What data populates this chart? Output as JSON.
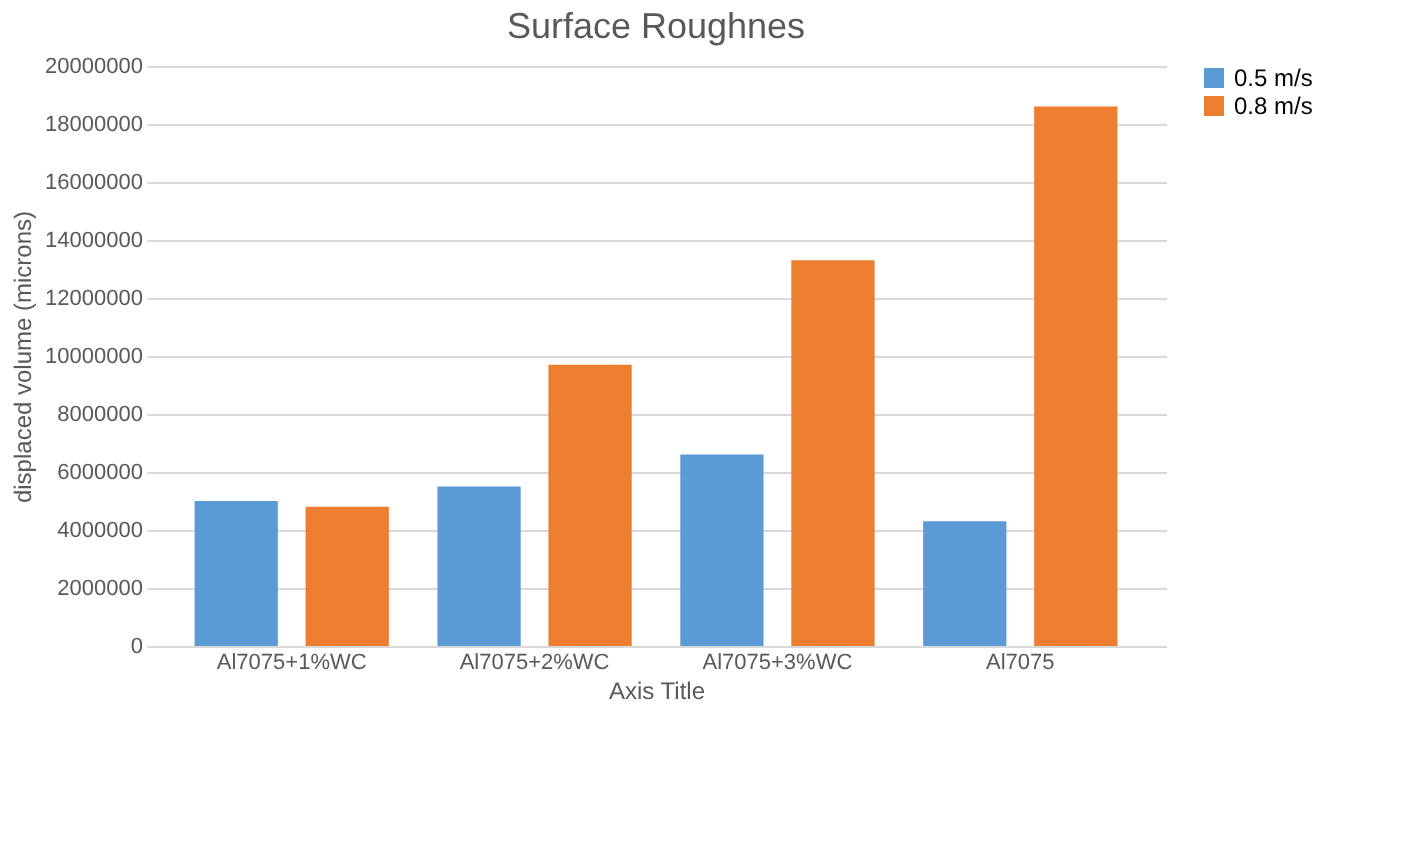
{
  "chart_data": {
    "type": "bar",
    "title": "Surface Roughnes",
    "xlabel": "Axis Title",
    "ylabel": "displaced volume (microns)",
    "categories": [
      "Al7075+1%WC",
      "Al7075+2%WC",
      "Al7075+3%WC",
      "Al7075"
    ],
    "series": [
      {
        "name": "0.5 m/s",
        "color": "#5b9bd5",
        "values": [
          5000000,
          5500000,
          6600000,
          4300000
        ]
      },
      {
        "name": "0.8 m/s",
        "color": "#ed7d31",
        "values": [
          4800000,
          9700000,
          13300000,
          18600000
        ]
      }
    ],
    "ylim": [
      0,
      20000000
    ],
    "yticks": [
      0,
      2000000,
      4000000,
      6000000,
      8000000,
      10000000,
      12000000,
      14000000,
      16000000,
      18000000,
      20000000
    ],
    "grid": "y",
    "legend": "right"
  }
}
